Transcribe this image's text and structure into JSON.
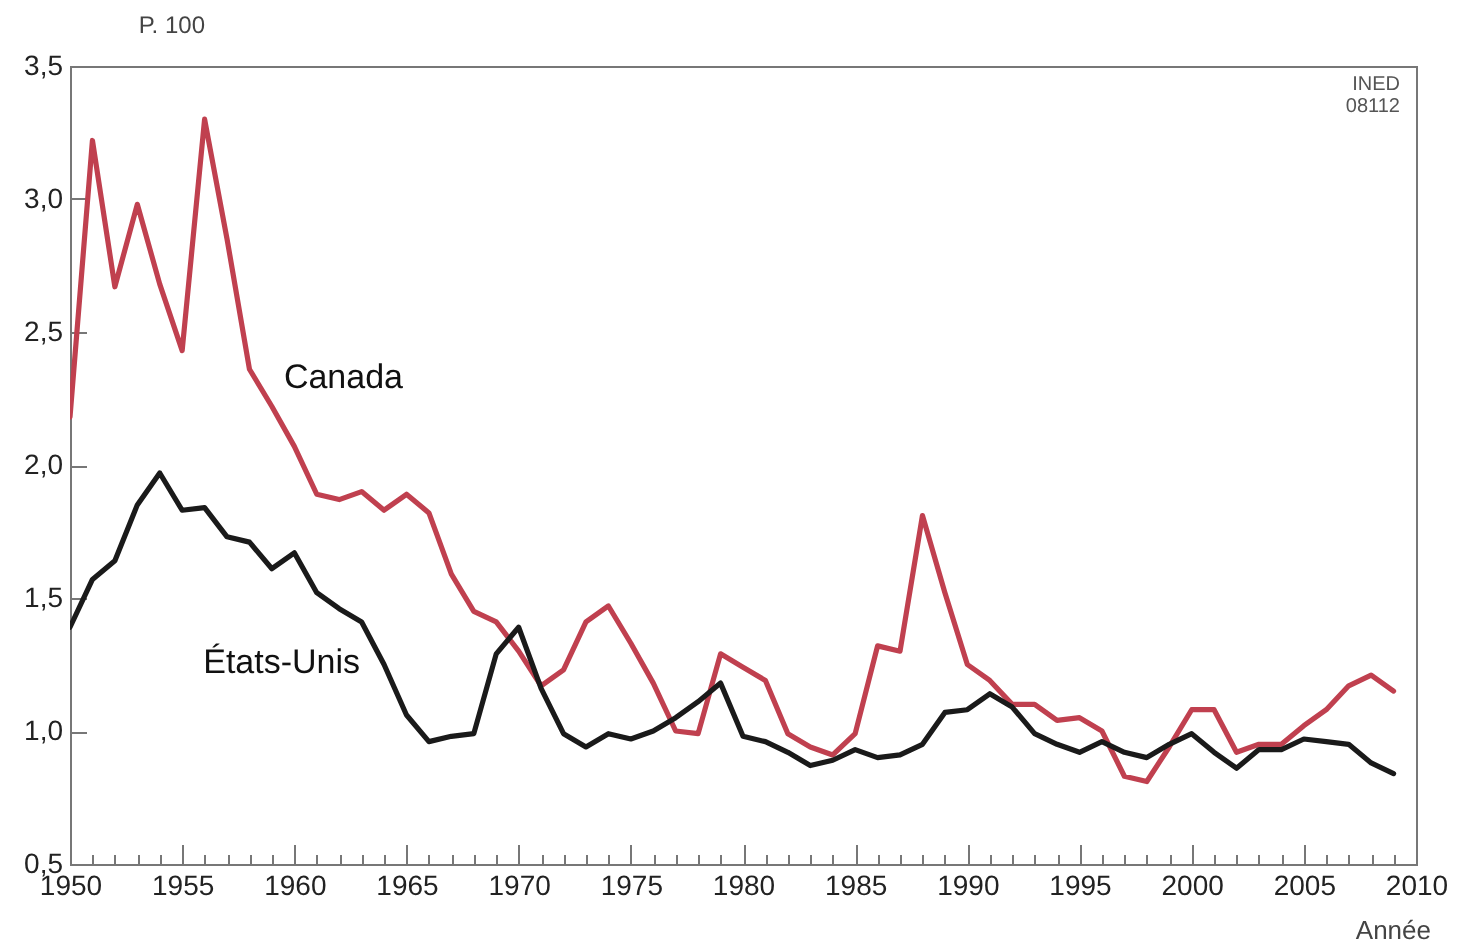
{
  "chart_data": {
    "type": "line",
    "ylabel": "P. 100",
    "xlabel": "Année",
    "annotations": [
      "INED",
      "08112"
    ],
    "x": [
      1950,
      1951,
      1952,
      1953,
      1954,
      1955,
      1956,
      1957,
      1958,
      1959,
      1960,
      1961,
      1962,
      1963,
      1964,
      1965,
      1966,
      1967,
      1968,
      1969,
      1970,
      1971,
      1972,
      1973,
      1974,
      1975,
      1976,
      1977,
      1978,
      1979,
      1980,
      1981,
      1982,
      1983,
      1984,
      1985,
      1986,
      1987,
      1988,
      1989,
      1990,
      1991,
      1992,
      1993,
      1994,
      1995,
      1996,
      1997,
      1998,
      1999,
      2000,
      2001,
      2002,
      2003,
      2004,
      2005,
      2006,
      2007,
      2008,
      2009
    ],
    "series": [
      {
        "name": "Canada",
        "color": "#c0404f",
        "values": [
          2.18,
          3.22,
          2.67,
          2.98,
          2.68,
          2.43,
          3.3,
          2.85,
          2.36,
          2.22,
          2.07,
          1.89,
          1.87,
          1.9,
          1.83,
          1.89,
          1.82,
          1.59,
          1.45,
          1.41,
          1.3,
          1.17,
          1.23,
          1.41,
          1.47,
          1.33,
          1.18,
          1.0,
          0.99,
          1.29,
          1.24,
          1.19,
          0.99,
          0.94,
          0.91,
          0.99,
          1.32,
          1.3,
          1.81,
          1.52,
          1.25,
          1.19,
          1.1,
          1.1,
          1.04,
          1.05,
          1.0,
          0.83,
          0.81,
          0.94,
          1.08,
          1.08,
          0.92,
          0.95,
          0.95,
          1.02,
          1.08,
          1.17,
          1.21,
          1.15
        ]
      },
      {
        "name": "États-Unis",
        "color": "#1a1a1a",
        "values": [
          1.39,
          1.57,
          1.64,
          1.85,
          1.97,
          1.83,
          1.84,
          1.73,
          1.71,
          1.61,
          1.67,
          1.52,
          1.46,
          1.41,
          1.25,
          1.06,
          0.96,
          0.98,
          0.99,
          1.29,
          1.39,
          1.16,
          0.99,
          0.94,
          0.99,
          0.97,
          1.0,
          1.05,
          1.11,
          1.18,
          0.98,
          0.96,
          0.92,
          0.87,
          0.89,
          0.93,
          0.9,
          0.91,
          0.95,
          1.07,
          1.08,
          1.14,
          1.09,
          0.99,
          0.95,
          0.92,
          0.96,
          0.92,
          0.9,
          0.95,
          0.99,
          0.92,
          0.86,
          0.93,
          0.93,
          0.97,
          0.96,
          0.95,
          0.88,
          0.84
        ]
      }
    ],
    "xlim": [
      1950,
      2010
    ],
    "xticks": [
      1950,
      {
        "value": 1951,
        "label": null
      },
      {
        "value": 1952,
        "label": null
      },
      {
        "value": 1953,
        "label": null
      },
      {
        "value": 1954,
        "label": null
      },
      1955,
      {
        "value": 1956,
        "label": null
      },
      {
        "value": 1957,
        "label": null
      },
      {
        "value": 1958,
        "label": null
      },
      {
        "value": 1959,
        "label": null
      },
      1960,
      {
        "value": 1961,
        "label": null
      },
      {
        "value": 1962,
        "label": null
      },
      {
        "value": 1963,
        "label": null
      },
      {
        "value": 1964,
        "label": null
      },
      1965,
      {
        "value": 1966,
        "label": null
      },
      {
        "value": 1967,
        "label": null
      },
      {
        "value": 1968,
        "label": null
      },
      {
        "value": 1969,
        "label": null
      },
      1970,
      {
        "value": 1971,
        "label": null
      },
      {
        "value": 1972,
        "label": null
      },
      {
        "value": 1973,
        "label": null
      },
      {
        "value": 1974,
        "label": null
      },
      1975,
      {
        "value": 1976,
        "label": null
      },
      {
        "value": 1977,
        "label": null
      },
      {
        "value": 1978,
        "label": null
      },
      {
        "value": 1979,
        "label": null
      },
      1980,
      {
        "value": 1981,
        "label": null
      },
      {
        "value": 1982,
        "label": null
      },
      {
        "value": 1983,
        "label": null
      },
      {
        "value": 1984,
        "label": null
      },
      1985,
      {
        "value": 1986,
        "label": null
      },
      {
        "value": 1987,
        "label": null
      },
      {
        "value": 1988,
        "label": null
      },
      {
        "value": 1989,
        "label": null
      },
      1990,
      {
        "value": 1991,
        "label": null
      },
      {
        "value": 1992,
        "label": null
      },
      {
        "value": 1993,
        "label": null
      },
      {
        "value": 1994,
        "label": null
      },
      1995,
      {
        "value": 1996,
        "label": null
      },
      {
        "value": 1997,
        "label": null
      },
      {
        "value": 1998,
        "label": null
      },
      {
        "value": 1999,
        "label": null
      },
      2000,
      {
        "value": 2001,
        "label": null
      },
      {
        "value": 2002,
        "label": null
      },
      {
        "value": 2003,
        "label": null
      },
      {
        "value": 2004,
        "label": null
      },
      2005,
      {
        "value": 2006,
        "label": null
      },
      {
        "value": 2007,
        "label": null
      },
      {
        "value": 2008,
        "label": null
      },
      {
        "value": 2009,
        "label": null
      },
      2010
    ],
    "ylim": [
      0.5,
      3.5
    ],
    "yticks": [
      {
        "value": 0.5,
        "label": "0,5"
      },
      {
        "value": 1,
        "label": "1,0"
      },
      {
        "value": 1.5,
        "label": "1,5"
      },
      {
        "value": 2,
        "label": "2,0"
      },
      {
        "value": 2.5,
        "label": "2,5"
      },
      {
        "value": 3,
        "label": "3,0"
      },
      {
        "value": 3.5,
        "label": "3,5"
      }
    ],
    "grid": false,
    "legend": false,
    "marker": "none",
    "line_style": "solid"
  }
}
